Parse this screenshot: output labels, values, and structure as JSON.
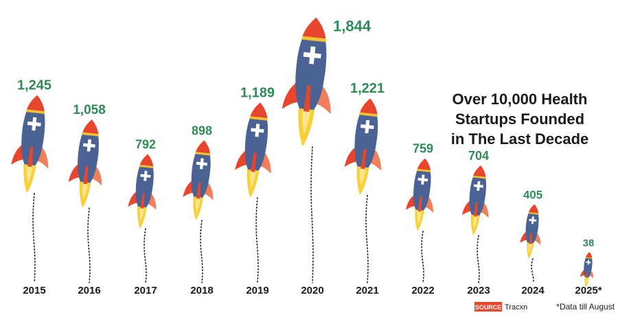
{
  "chart_data": {
    "type": "bar",
    "title_lines": [
      "Over 10,000 Health",
      "Startups Founded",
      "in The Last Decade"
    ],
    "categories": [
      "2015",
      "2016",
      "2017",
      "2018",
      "2019",
      "2020",
      "2021",
      "2022",
      "2023",
      "2024",
      "2025*"
    ],
    "values": [
      1245,
      1058,
      792,
      898,
      1189,
      1844,
      1221,
      759,
      704,
      405,
      38
    ],
    "value_labels": [
      "1,245",
      "1,058",
      "792",
      "898",
      "1,189",
      "1,844",
      "1,221",
      "759",
      "704",
      "405",
      "38"
    ],
    "xlabel": "",
    "ylabel": ""
  },
  "source": {
    "tag": "SOURCE",
    "name": "Tracxn"
  },
  "footnote": "*Data till August",
  "colors": {
    "body": "#4a6394",
    "nose": "#e8452c",
    "band": "#f5c12e",
    "fin_outer": "#f0805c",
    "fin_inner": "#e8452c",
    "flame": "#f8d13a",
    "value_text": "#2e8b57",
    "source_bg": "#e8452c"
  }
}
